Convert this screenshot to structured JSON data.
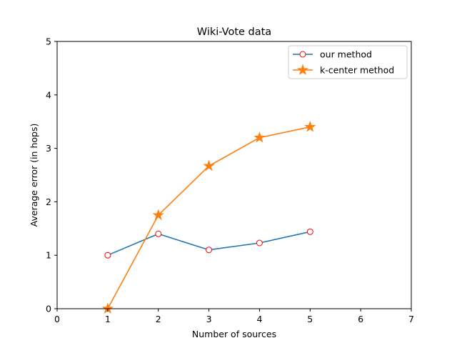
{
  "chart_data": {
    "type": "line",
    "title": "Wiki-Vote  data",
    "xlabel": "Number of sources",
    "ylabel": "Average error  (in hops)",
    "xlim": [
      0,
      7
    ],
    "ylim": [
      0,
      5
    ],
    "xticks": [
      "0",
      "1",
      "2",
      "3",
      "4",
      "5",
      "6",
      "7"
    ],
    "yticks": [
      "0",
      "1",
      "2",
      "3",
      "4",
      "5"
    ],
    "grid": false,
    "legend_position": "top-right",
    "series": [
      {
        "name": "our method",
        "x": [
          1,
          2,
          3,
          4,
          5
        ],
        "y": [
          1.0,
          1.4,
          1.1,
          1.23,
          1.44
        ],
        "color": "#1f77b4",
        "marker": "circle",
        "marker_edge": "#ff0000",
        "marker_face": "#ffffff"
      },
      {
        "name": "k-center method",
        "x": [
          1,
          2,
          3,
          4,
          5
        ],
        "y": [
          0.0,
          1.75,
          2.67,
          3.2,
          3.4
        ],
        "color": "#ff7f0e",
        "marker": "star",
        "marker_edge": "#ff7f0e",
        "marker_face": "#ff7f0e"
      }
    ]
  }
}
